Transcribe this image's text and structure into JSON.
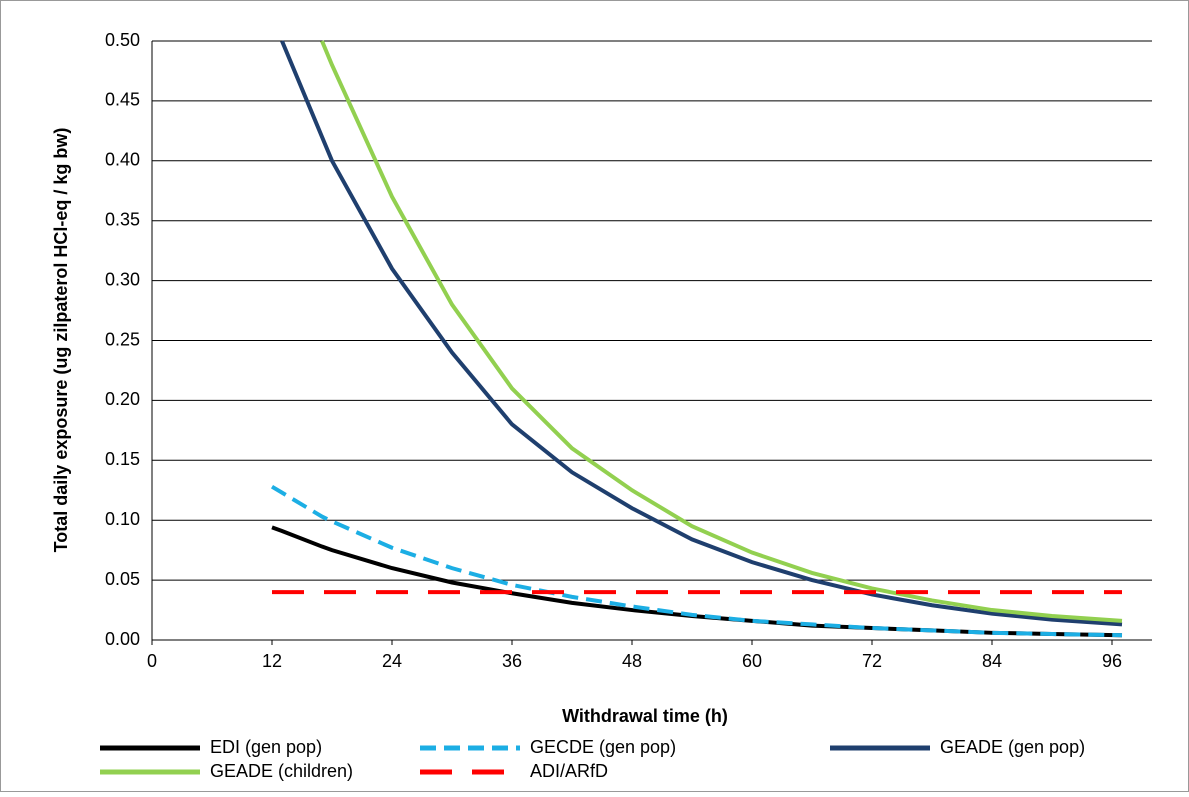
{
  "chart_data": {
    "type": "line",
    "xlabel": "Withdrawal time (h)",
    "ylabel": "Total daily exposure (ug zilpaterol HCl-eq / kg bw)",
    "x": [
      12,
      13,
      17,
      18,
      24,
      30,
      36,
      42,
      48,
      54,
      60,
      66,
      72,
      78,
      84,
      90,
      97
    ],
    "series": [
      {
        "name": "EDI (gen pop)",
        "color": "#000000",
        "dash": "solid",
        "values": [
          0.094,
          0.091,
          0.078,
          0.075,
          0.06,
          0.048,
          0.039,
          0.031,
          0.025,
          0.02,
          0.016,
          0.012,
          0.01,
          0.008,
          0.006,
          0.005,
          0.004
        ]
      },
      {
        "name": "GECDE (gen pop)",
        "color": "#1CAEE4",
        "dash": "dashed",
        "values": [
          0.128,
          0.123,
          0.103,
          0.099,
          0.077,
          0.06,
          0.046,
          0.036,
          0.028,
          0.021,
          0.016,
          0.013,
          0.01,
          0.008,
          0.006,
          0.005,
          0.004
        ]
      },
      {
        "name": "GEADE (gen pop)",
        "color": "#1F3F6E",
        "dash": "solid",
        "values": [
          null,
          0.5,
          0.42,
          0.4,
          0.31,
          0.24,
          0.18,
          0.14,
          0.11,
          0.084,
          0.065,
          0.05,
          0.038,
          0.029,
          0.022,
          0.017,
          0.013
        ]
      },
      {
        "name": "GEADE (children)",
        "color": "#92D050",
        "dash": "solid",
        "values": [
          null,
          null,
          0.5,
          0.48,
          0.37,
          0.28,
          0.21,
          0.16,
          0.125,
          0.095,
          0.073,
          0.056,
          0.043,
          0.033,
          0.025,
          0.02,
          0.016
        ]
      },
      {
        "name": "ADI/ARfD",
        "color": "#FF0000",
        "dash": "longdash",
        "values": [
          0.04,
          0.04,
          0.04,
          0.04,
          0.04,
          0.04,
          0.04,
          0.04,
          0.04,
          0.04,
          0.04,
          0.04,
          0.04,
          0.04,
          0.04,
          0.04,
          0.04
        ]
      }
    ],
    "xlim": [
      0,
      100
    ],
    "xticks": [
      0,
      12,
      24,
      36,
      48,
      60,
      72,
      84,
      96
    ],
    "ylim": [
      0,
      0.5
    ],
    "yticks": [
      {
        "value": 0,
        "label": "0.00"
      },
      {
        "value": 0.05,
        "label": "0.05"
      },
      {
        "value": 0.1,
        "label": "0.10"
      },
      {
        "value": 0.15,
        "label": "0.15"
      },
      {
        "value": 0.2,
        "label": "0.20"
      },
      {
        "value": 0.25,
        "label": "0.25"
      },
      {
        "value": 0.3,
        "label": "0.30"
      },
      {
        "value": 0.35,
        "label": "0.35"
      },
      {
        "value": 0.4,
        "label": "0.40"
      },
      {
        "value": 0.45,
        "label": "0.45"
      },
      {
        "value": 0.5,
        "label": "0.50"
      }
    ],
    "grid": true,
    "legend": "bottom"
  }
}
